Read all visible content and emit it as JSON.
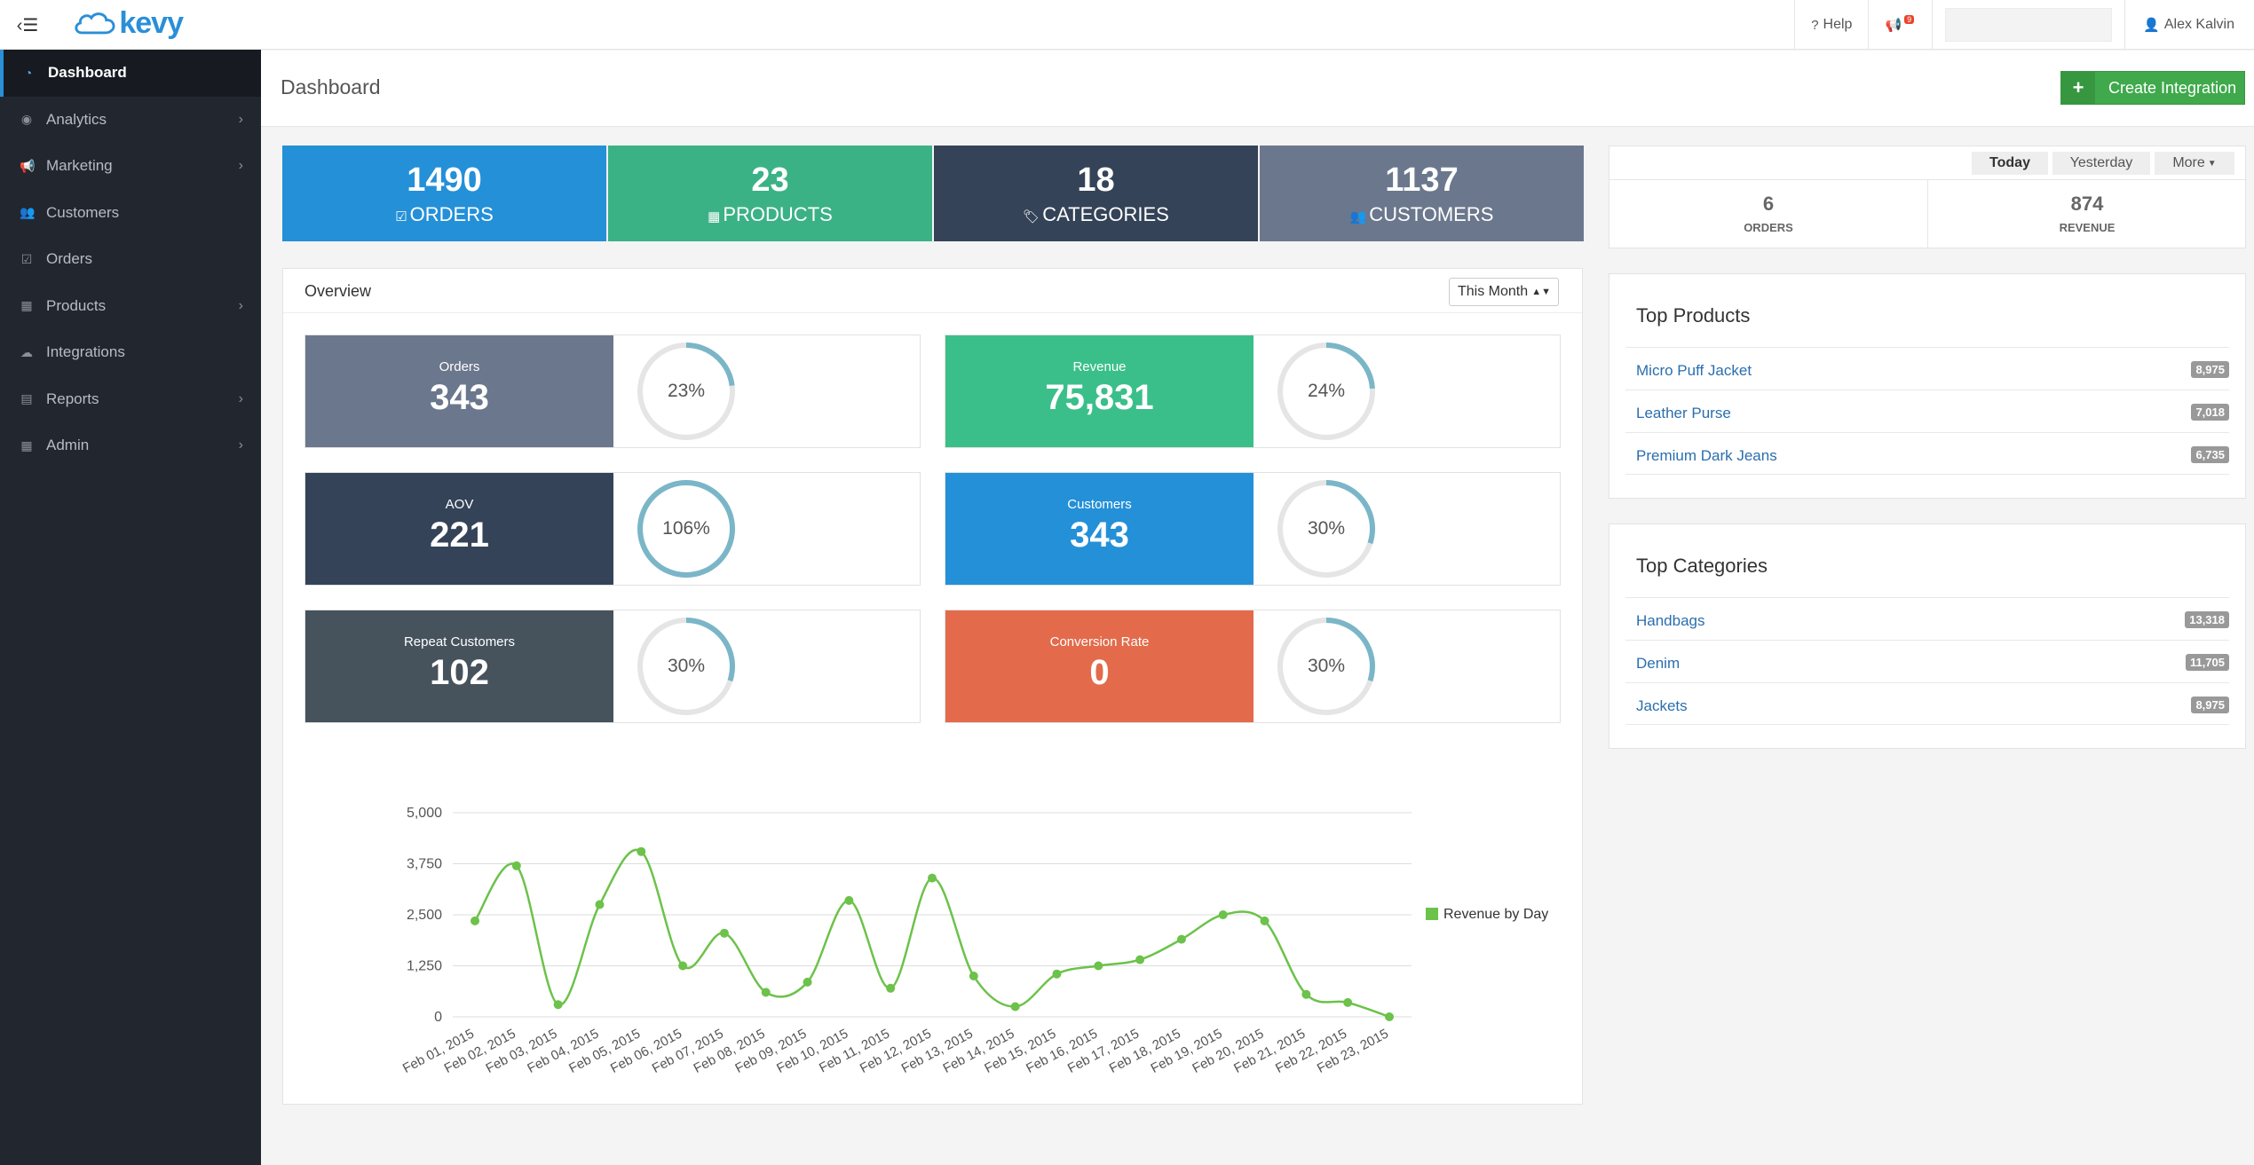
{
  "app": {
    "logo_text": "kevy"
  },
  "topbar": {
    "help_label": "Help",
    "notification_count": "9",
    "user_name": "Alex Kalvin"
  },
  "sidebar": {
    "items": [
      {
        "label": "Dashboard",
        "icon": "dashboard-icon",
        "has_submenu": false,
        "active": true
      },
      {
        "label": "Analytics",
        "icon": "analytics-icon",
        "has_submenu": true
      },
      {
        "label": "Marketing",
        "icon": "bullhorn-icon",
        "has_submenu": true
      },
      {
        "label": "Customers",
        "icon": "users-icon",
        "has_submenu": false
      },
      {
        "label": "Orders",
        "icon": "check-square-icon",
        "has_submenu": false
      },
      {
        "label": "Products",
        "icon": "table-icon",
        "has_submenu": true
      },
      {
        "label": "Integrations",
        "icon": "cloud-icon",
        "has_submenu": false
      },
      {
        "label": "Reports",
        "icon": "bar-chart-icon",
        "has_submenu": true
      },
      {
        "label": "Admin",
        "icon": "grid-icon",
        "has_submenu": true
      }
    ]
  },
  "page": {
    "title": "Dashboard",
    "create_button_label": "Create Integration"
  },
  "stats": [
    {
      "value": "1490",
      "label": "ORDERS",
      "icon": "check-square-icon",
      "color": "#2490d8"
    },
    {
      "value": "23",
      "label": "PRODUCTS",
      "icon": "table-icon",
      "color": "#3bb286"
    },
    {
      "value": "18",
      "label": "CATEGORIES",
      "icon": "tags-icon",
      "color": "#344358"
    },
    {
      "value": "1137",
      "label": "CUSTOMERS",
      "icon": "users-icon",
      "color": "#6b778c"
    }
  ],
  "overview": {
    "title": "Overview",
    "period_selected": "This Month",
    "metrics": [
      {
        "label": "Orders",
        "value": "343",
        "percent_label": "23%",
        "percent": 23,
        "color": "#6b778c"
      },
      {
        "label": "Revenue",
        "value": "75,831",
        "percent_label": "24%",
        "percent": 24,
        "color": "#3bbf8a"
      },
      {
        "label": "AOV",
        "value": "221",
        "percent_label": "106%",
        "percent": 106,
        "color": "#344358"
      },
      {
        "label": "Customers",
        "value": "343",
        "percent_label": "30%",
        "percent": 30,
        "color": "#2490d8"
      },
      {
        "label": "Repeat Customers",
        "value": "102",
        "percent_label": "30%",
        "percent": 30,
        "color": "#46525c"
      },
      {
        "label": "Conversion Rate",
        "value": "0",
        "percent_label": "30%",
        "percent": 30,
        "color": "#e36b4b"
      }
    ]
  },
  "chart_data": {
    "type": "line",
    "x": [
      "Feb 01, 2015",
      "Feb 02, 2015",
      "Feb 03, 2015",
      "Feb 04, 2015",
      "Feb 05, 2015",
      "Feb 06, 2015",
      "Feb 07, 2015",
      "Feb 08, 2015",
      "Feb 09, 2015",
      "Feb 10, 2015",
      "Feb 11, 2015",
      "Feb 12, 2015",
      "Feb 13, 2015",
      "Feb 14, 2015",
      "Feb 15, 2015",
      "Feb 16, 2015",
      "Feb 17, 2015",
      "Feb 18, 2015",
      "Feb 19, 2015",
      "Feb 20, 2015",
      "Feb 21, 2015",
      "Feb 22, 2015",
      "Feb 23, 2015"
    ],
    "series": [
      {
        "name": "Revenue by Day",
        "color": "#6cc24a",
        "values": [
          2350,
          3700,
          300,
          2750,
          4050,
          1250,
          2050,
          600,
          850,
          2850,
          700,
          3400,
          1000,
          250,
          1050,
          1250,
          1400,
          1900,
          2500,
          2350,
          550,
          350,
          0
        ]
      }
    ],
    "yticks": [
      "5,000",
      "3,750",
      "2,500",
      "1,250",
      "0"
    ],
    "ylim": [
      0,
      5000
    ],
    "legend": "right",
    "grid": true
  },
  "today_panel": {
    "tabs": [
      "Today",
      "Yesterday",
      "More"
    ],
    "active_tab": "Today",
    "kpis": [
      {
        "value": "6",
        "label": "ORDERS"
      },
      {
        "value": "874",
        "label": "REVENUE"
      }
    ]
  },
  "top_products": {
    "title": "Top Products",
    "items": [
      {
        "name": "Micro Puff Jacket",
        "count": "8,975"
      },
      {
        "name": "Leather Purse",
        "count": "7,018"
      },
      {
        "name": "Premium Dark Jeans",
        "count": "6,735"
      }
    ]
  },
  "top_categories": {
    "title": "Top Categories",
    "items": [
      {
        "name": "Handbags",
        "count": "13,318"
      },
      {
        "name": "Denim",
        "count": "11,705"
      },
      {
        "name": "Jackets",
        "count": "8,975"
      }
    ]
  }
}
